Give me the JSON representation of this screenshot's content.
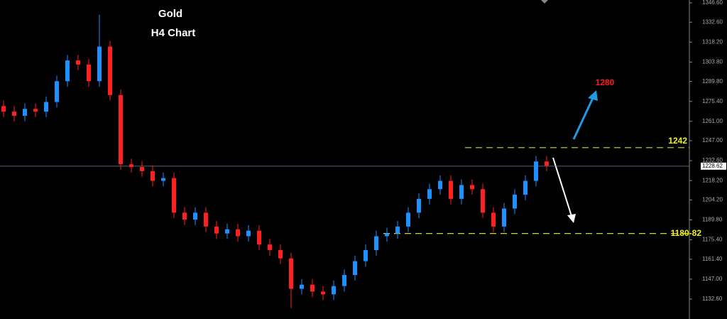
{
  "chart_data": {
    "type": "candlestick",
    "title": "Gold",
    "subtitle": "H4 Chart",
    "up_color": "#1e90ff",
    "down_color": "#ff2020",
    "open": [
      1272,
      1268,
      1265,
      1270,
      1268,
      1275,
      1290,
      1305,
      1302,
      1290,
      1315,
      1280,
      1230,
      1228,
      1225,
      1218,
      1220,
      1195,
      1190,
      1195,
      1185,
      1180,
      1183,
      1178,
      1182,
      1172,
      1168,
      1162,
      1140,
      1143,
      1138,
      1136,
      1142,
      1150,
      1160,
      1168,
      1178,
      1180,
      1185,
      1195,
      1205,
      1212,
      1218,
      1205,
      1215,
      1212,
      1195,
      1185,
      1198,
      1208,
      1218,
      1232
    ],
    "high": [
      1276,
      1272,
      1274,
      1274,
      1279,
      1294,
      1309,
      1309,
      1306,
      1338,
      1319,
      1284,
      1234,
      1232,
      1229,
      1224,
      1224,
      1199,
      1199,
      1199,
      1189,
      1187,
      1187,
      1186,
      1186,
      1176,
      1172,
      1166,
      1147,
      1147,
      1142,
      1146,
      1154,
      1164,
      1172,
      1182,
      1184,
      1189,
      1199,
      1209,
      1216,
      1222,
      1222,
      1219,
      1219,
      1216,
      1199,
      1202,
      1212,
      1222,
      1236,
      1236
    ],
    "low": [
      1264,
      1261,
      1261,
      1264,
      1264,
      1271,
      1286,
      1298,
      1286,
      1286,
      1276,
      1226,
      1224,
      1221,
      1214,
      1214,
      1191,
      1186,
      1186,
      1181,
      1176,
      1176,
      1174,
      1174,
      1168,
      1164,
      1158,
      1126,
      1136,
      1134,
      1132,
      1132,
      1138,
      1146,
      1156,
      1164,
      1174,
      1176,
      1181,
      1191,
      1201,
      1208,
      1201,
      1201,
      1208,
      1191,
      1181,
      1181,
      1194,
      1204,
      1214,
      1225
    ],
    "close": [
      1268,
      1265,
      1270,
      1268,
      1275,
      1290,
      1305,
      1302,
      1290,
      1315,
      1280,
      1230,
      1228,
      1225,
      1218,
      1220,
      1195,
      1190,
      1195,
      1185,
      1180,
      1183,
      1178,
      1182,
      1172,
      1168,
      1162,
      1140,
      1143,
      1138,
      1136,
      1142,
      1150,
      1160,
      1168,
      1178,
      1180,
      1185,
      1195,
      1205,
      1212,
      1218,
      1205,
      1215,
      1212,
      1195,
      1185,
      1198,
      1208,
      1218,
      1232,
      1229
    ],
    "ylim": [
      1118.2,
      1348.65
    ],
    "yticks": [
      {
        "value": 1346.6,
        "label": "1346.60"
      },
      {
        "value": 1332.6,
        "label": "1332.60"
      },
      {
        "value": 1318.2,
        "label": "1318.20"
      },
      {
        "value": 1303.8,
        "label": "1303.80"
      },
      {
        "value": 1289.8,
        "label": "1289.80"
      },
      {
        "value": 1275.4,
        "label": "1275.40"
      },
      {
        "value": 1261,
        "label": "1261.00"
      },
      {
        "value": 1247,
        "label": "1247.00"
      },
      {
        "value": 1232.6,
        "label": "1232.60"
      },
      {
        "value": 1218.2,
        "label": "1218.20"
      },
      {
        "value": 1204.2,
        "label": "1204.20"
      },
      {
        "value": 1189.8,
        "label": "1189.80"
      },
      {
        "value": 1175.4,
        "label": "1175.40"
      },
      {
        "value": 1161.4,
        "label": "1161.40"
      },
      {
        "value": 1147,
        "label": "1147.00"
      },
      {
        "value": 1132.6,
        "label": "1132.60"
      }
    ],
    "last_price": 1228.62,
    "levels": [
      {
        "value": 1242,
        "label": "1242"
      },
      {
        "value": 1180,
        "label": "1180-82"
      }
    ],
    "target_label": "1280"
  }
}
